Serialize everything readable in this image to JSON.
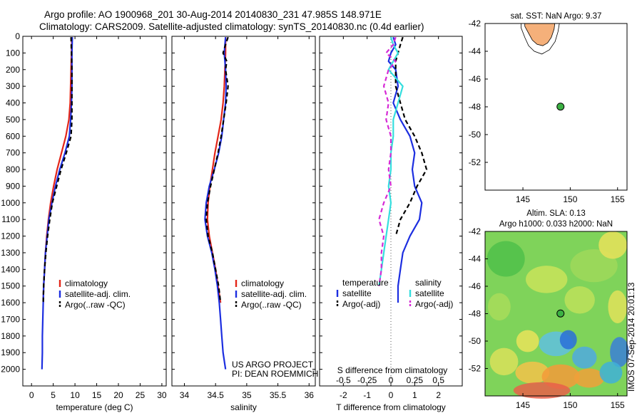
{
  "header": {
    "line1": "Argo profile: AO 1900968_201 30-Aug-2014 20140830_231 47.985S 148.971E",
    "line2": "Climatology: CARS2009. Satellite-adjusted climatology: synTS_20140830.nc (0.4d earlier)"
  },
  "colors": {
    "red": "#e32619",
    "blue": "#1c2ee0",
    "cyan": "#35dede",
    "magenta": "#d62ad6",
    "black": "#000000",
    "land": "#f5b07a"
  },
  "chart_data": [
    {
      "type": "line",
      "xlabel": "temperature (deg C)",
      "ylabel": "",
      "xlim": [
        -2,
        31
      ],
      "ylim": [
        2100,
        0
      ],
      "xticks": [
        0,
        5,
        10,
        15,
        20,
        25,
        30
      ],
      "yticks": [
        0,
        100,
        200,
        300,
        400,
        500,
        600,
        700,
        800,
        900,
        1000,
        1100,
        1200,
        1300,
        1400,
        1500,
        1600,
        1700,
        1800,
        1900,
        2000
      ],
      "legend": [
        "climatology",
        "satellite-adj. clim.",
        "Argo(..raw -QC)"
      ],
      "series": [
        {
          "name": "climatology",
          "color": "red",
          "dash": "",
          "y": [
            5,
            100,
            200,
            300,
            400,
            500,
            600,
            700,
            800,
            900,
            1000,
            1100,
            1200,
            1300,
            1400,
            1500,
            1600
          ],
          "x": [
            9.3,
            9.2,
            9.1,
            9.0,
            8.9,
            8.6,
            7.9,
            6.9,
            5.9,
            5.1,
            4.4,
            3.9,
            3.5,
            3.2,
            3.0,
            2.8,
            2.7
          ]
        },
        {
          "name": "satellite-adj. clim.",
          "color": "blue",
          "dash": "",
          "y": [
            5,
            100,
            200,
            300,
            400,
            500,
            600,
            700,
            800,
            900,
            1000,
            1100,
            1200,
            1300,
            1400,
            1500,
            1600,
            1700,
            1800,
            1900,
            2000
          ],
          "x": [
            9.4,
            9.3,
            9.3,
            9.3,
            9.2,
            9.0,
            8.7,
            7.7,
            6.5,
            5.5,
            4.7,
            4.0,
            3.6,
            3.2,
            3.0,
            2.8,
            2.7,
            2.6,
            2.5,
            2.5,
            2.4
          ]
        },
        {
          "name": "Argo(..raw -QC)",
          "color": "black",
          "dash": "6,4",
          "y": [
            5,
            100,
            200,
            300,
            400,
            500,
            600,
            700,
            800,
            900,
            1000,
            1100,
            1200,
            1300,
            1400,
            1500,
            1600
          ],
          "x": [
            9.1,
            9.2,
            9.3,
            9.3,
            9.3,
            9.3,
            9.1,
            8.0,
            6.8,
            5.8,
            4.8,
            4.2,
            3.7,
            3.3,
            3.0,
            2.8,
            2.7
          ]
        }
      ]
    },
    {
      "type": "line",
      "xlabel": "salinity",
      "ylabel": "",
      "xlim": [
        33.8,
        36.1
      ],
      "ylim": [
        2100,
        0
      ],
      "xticks": [
        34,
        34.5,
        35,
        35.5,
        36
      ],
      "legend": [
        "climatology",
        "satellite-adj. clim.",
        "Argo(..raw -QC)"
      ],
      "annotations": [
        "US ARGO PROJECT",
        "PI: DEAN ROEMMICH"
      ],
      "series": [
        {
          "name": "climatology",
          "color": "red",
          "dash": "",
          "y": [
            5,
            100,
            200,
            300,
            400,
            500,
            600,
            700,
            800,
            900,
            1000,
            1100,
            1200,
            1300,
            1400,
            1500,
            1600
          ],
          "x": [
            34.66,
            34.66,
            34.65,
            34.64,
            34.62,
            34.59,
            34.54,
            34.49,
            34.45,
            34.41,
            34.38,
            34.37,
            34.4,
            34.45,
            34.5,
            34.54,
            34.58
          ]
        },
        {
          "name": "satellite-adj. clim.",
          "color": "blue",
          "dash": "",
          "y": [
            5,
            100,
            200,
            300,
            400,
            500,
            600,
            700,
            800,
            900,
            1000,
            1100,
            1200,
            1300,
            1400,
            1500,
            1600,
            1700,
            1800,
            1900,
            2000
          ],
          "x": [
            34.66,
            34.64,
            34.66,
            34.67,
            34.66,
            34.63,
            34.6,
            34.55,
            34.48,
            34.4,
            34.35,
            34.33,
            34.37,
            34.44,
            34.49,
            34.53,
            34.56,
            34.58,
            34.6,
            34.62,
            34.66
          ]
        },
        {
          "name": "Argo(..raw -QC)",
          "color": "black",
          "dash": "6,4",
          "y": [
            5,
            50,
            100,
            150,
            200,
            300,
            400,
            500,
            600,
            700,
            800,
            900,
            1000,
            1100,
            1200,
            1300,
            1400,
            1500,
            1600
          ],
          "x": [
            34.7,
            34.66,
            34.62,
            34.68,
            34.66,
            34.7,
            34.67,
            34.63,
            34.59,
            34.54,
            34.48,
            34.42,
            34.37,
            34.35,
            34.38,
            34.45,
            34.5,
            34.55,
            34.58
          ]
        }
      ]
    },
    {
      "type": "line",
      "xlabel": "T difference from climatology",
      "xlabel_top": "S difference from climatology",
      "xlim": [
        -3,
        3
      ],
      "ylim": [
        2100,
        0
      ],
      "xticks": [
        -2,
        -1,
        0,
        1,
        2
      ],
      "xticks_top": [
        "-0.5",
        "-0.25",
        "0",
        "0.25",
        "0.5"
      ],
      "legend_headers": [
        "temperature",
        "salinity"
      ],
      "legend": [
        "satellite",
        "Argo(-adj)",
        "satellite",
        "Argo(-adj)"
      ],
      "series": [
        {
          "name": "satellite",
          "quantity": "temperature",
          "color": "blue",
          "dash": "",
          "y": [
            5,
            50,
            100,
            150,
            200,
            300,
            400,
            500,
            600,
            700,
            800,
            900,
            1000,
            1100,
            1200,
            1300,
            1400,
            1500,
            1600
          ],
          "x": [
            0.1,
            0.2,
            0.0,
            -0.1,
            0.2,
            0.3,
            0.1,
            0.4,
            0.8,
            1.0,
            0.9,
            1.0,
            1.3,
            1.2,
            0.8,
            0.5,
            0.4,
            0.3,
            0.3
          ]
        },
        {
          "name": "Argo(-adj)",
          "quantity": "temperature",
          "color": "black",
          "dash": "6,4",
          "y": [
            5,
            50,
            100,
            150,
            200,
            300,
            400,
            500,
            600,
            700,
            800,
            900,
            1000,
            1100,
            1200
          ],
          "x": [
            0.5,
            0.4,
            0.3,
            0.2,
            0.2,
            0.2,
            0.4,
            0.6,
            1.0,
            1.3,
            1.5,
            1.1,
            0.8,
            0.4,
            0.2
          ]
        },
        {
          "name": "satellite",
          "quantity": "salinity",
          "color": "cyan",
          "dash": "",
          "y": [
            5,
            50,
            100,
            150,
            200,
            300,
            400,
            500,
            600,
            700,
            800,
            900,
            1000,
            1100,
            1200,
            1300,
            1400,
            1500
          ],
          "x": [
            0.0,
            0.1,
            0.3,
            0.1,
            -0.1,
            0.5,
            0.3,
            0.1,
            0.1,
            0.0,
            0.0,
            -0.1,
            0.0,
            -0.1,
            -0.2,
            -0.3,
            -0.4,
            -0.5
          ]
        },
        {
          "name": "Argo(-adj)",
          "quantity": "salinity",
          "color": "magenta",
          "dash": "6,4",
          "y": [
            5,
            50,
            100,
            150,
            200,
            300,
            400,
            500,
            600,
            700,
            800,
            900,
            1000,
            1100,
            1200,
            1300,
            1400,
            1500
          ],
          "x": [
            0.2,
            0.1,
            -0.2,
            0.2,
            -0.1,
            -0.3,
            -0.1,
            -0.2,
            0.0,
            0.0,
            -0.1,
            0.0,
            -0.3,
            -0.5,
            -0.3,
            -0.4,
            -0.4,
            -0.5
          ]
        }
      ]
    },
    {
      "type": "scatter",
      "title": "sat. SST: NaN Argo: 9.37",
      "xlim": [
        141,
        156
      ],
      "ylim": [
        -54,
        -42
      ],
      "xticks": [
        145,
        150,
        155
      ],
      "yticks": [
        -42,
        -44,
        -46,
        -48,
        -50,
        -52
      ],
      "points": [
        {
          "x": 148.971,
          "y": -47.985
        }
      ]
    },
    {
      "type": "heatmap",
      "title_line1": "Altim. SLA: 0.13",
      "title_line2": "Argo h1000: 0.033 h2000: NaN",
      "xlim": [
        141,
        156
      ],
      "ylim": [
        -54,
        -42
      ],
      "xticks": [
        145,
        150,
        155
      ],
      "yticks": [
        -42,
        -44,
        -46,
        -48,
        -50,
        -52
      ],
      "side_label": "IMOS 07-Sep-2014 20:01:13",
      "points": [
        {
          "x": 148.971,
          "y": -47.985
        }
      ]
    }
  ]
}
